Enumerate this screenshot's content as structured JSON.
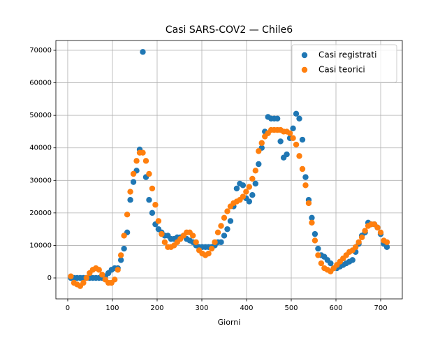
{
  "chart_data": {
    "type": "scatter",
    "title": "Casi SARS-COV2 — Chile6",
    "xlabel": "Giorni",
    "x": [
      7,
      14,
      21,
      28,
      35,
      42,
      49,
      56,
      63,
      70,
      77,
      84,
      91,
      98,
      105,
      112,
      119,
      126,
      133,
      140,
      147,
      154,
      161,
      168,
      175,
      182,
      189,
      196,
      203,
      210,
      217,
      224,
      231,
      238,
      245,
      252,
      259,
      266,
      273,
      280,
      287,
      294,
      301,
      308,
      315,
      322,
      329,
      336,
      343,
      350,
      357,
      364,
      371,
      378,
      385,
      392,
      399,
      406,
      413,
      420,
      427,
      434,
      441,
      448,
      455,
      462,
      469,
      476,
      483,
      490,
      497,
      504,
      511,
      518,
      525,
      532,
      539,
      546,
      553,
      560,
      567,
      574,
      581,
      588,
      595,
      602,
      609,
      616,
      623,
      630,
      637,
      644,
      651,
      658,
      665,
      672,
      679,
      686,
      693,
      700,
      707,
      714
    ],
    "series": [
      {
        "name": "Casi registrati",
        "color": "#1f77b4",
        "values": [
          0,
          0,
          0,
          0,
          0,
          0,
          0,
          0,
          0,
          0,
          0,
          500,
          1500,
          2500,
          3000,
          3000,
          5500,
          9000,
          14000,
          24000,
          29500,
          33000,
          39500,
          69500,
          31000,
          24000,
          20000,
          16500,
          15000,
          14000,
          13000,
          13000,
          12000,
          12000,
          12500,
          12500,
          13000,
          12000,
          11500,
          11000,
          10000,
          9500,
          9500,
          9500,
          9500,
          9500,
          10000,
          11000,
          11000,
          13000,
          15000,
          17500,
          22000,
          27500,
          29000,
          28500,
          24500,
          23500,
          25500,
          29000,
          35000,
          40000,
          45000,
          49500,
          49000,
          49000,
          49000,
          42000,
          37000,
          38000,
          43000,
          46000,
          50500,
          49000,
          42500,
          31000,
          24000,
          18500,
          13500,
          9000,
          7000,
          6500,
          5500,
          4500,
          3000,
          3000,
          3500,
          4000,
          4500,
          5000,
          5500,
          8000,
          10500,
          13000,
          14000,
          17000,
          16500,
          16500,
          15500,
          13500,
          10500,
          9500
        ]
      },
      {
        "name": "Casi teorici",
        "color": "#ff7f0e",
        "values": [
          500,
          -1500,
          -2000,
          -2500,
          -1500,
          0,
          1500,
          2500,
          3000,
          2500,
          1000,
          -500,
          -1500,
          -1500,
          -500,
          2500,
          7000,
          13000,
          19500,
          26500,
          32000,
          36000,
          38500,
          38500,
          36000,
          32000,
          27500,
          22500,
          17500,
          13500,
          11000,
          9500,
          9500,
          10000,
          11000,
          12000,
          13000,
          14000,
          14000,
          13000,
          11000,
          8500,
          7500,
          7000,
          7500,
          9000,
          11000,
          14000,
          16000,
          18500,
          20500,
          22000,
          23000,
          23500,
          24000,
          25000,
          26500,
          28000,
          30500,
          33000,
          39000,
          41500,
          43500,
          44500,
          45500,
          45500,
          45500,
          45500,
          45000,
          45000,
          44500,
          43000,
          41000,
          37500,
          33500,
          28500,
          23000,
          17000,
          11500,
          7000,
          4500,
          3000,
          2500,
          2000,
          3000,
          4000,
          5000,
          6000,
          7000,
          8000,
          8500,
          9500,
          11000,
          12500,
          14500,
          16000,
          16500,
          16500,
          15500,
          14000,
          11500,
          11000
        ]
      }
    ],
    "xlim": [
      -26.5,
      748.4
    ],
    "ylim": [
      -6442,
      73010
    ],
    "xticks": [
      0,
      100,
      200,
      300,
      400,
      500,
      600,
      700
    ],
    "yticks": [
      0,
      10000,
      20000,
      30000,
      40000,
      50000,
      60000,
      70000
    ],
    "grid": true,
    "legend": "upper right"
  }
}
